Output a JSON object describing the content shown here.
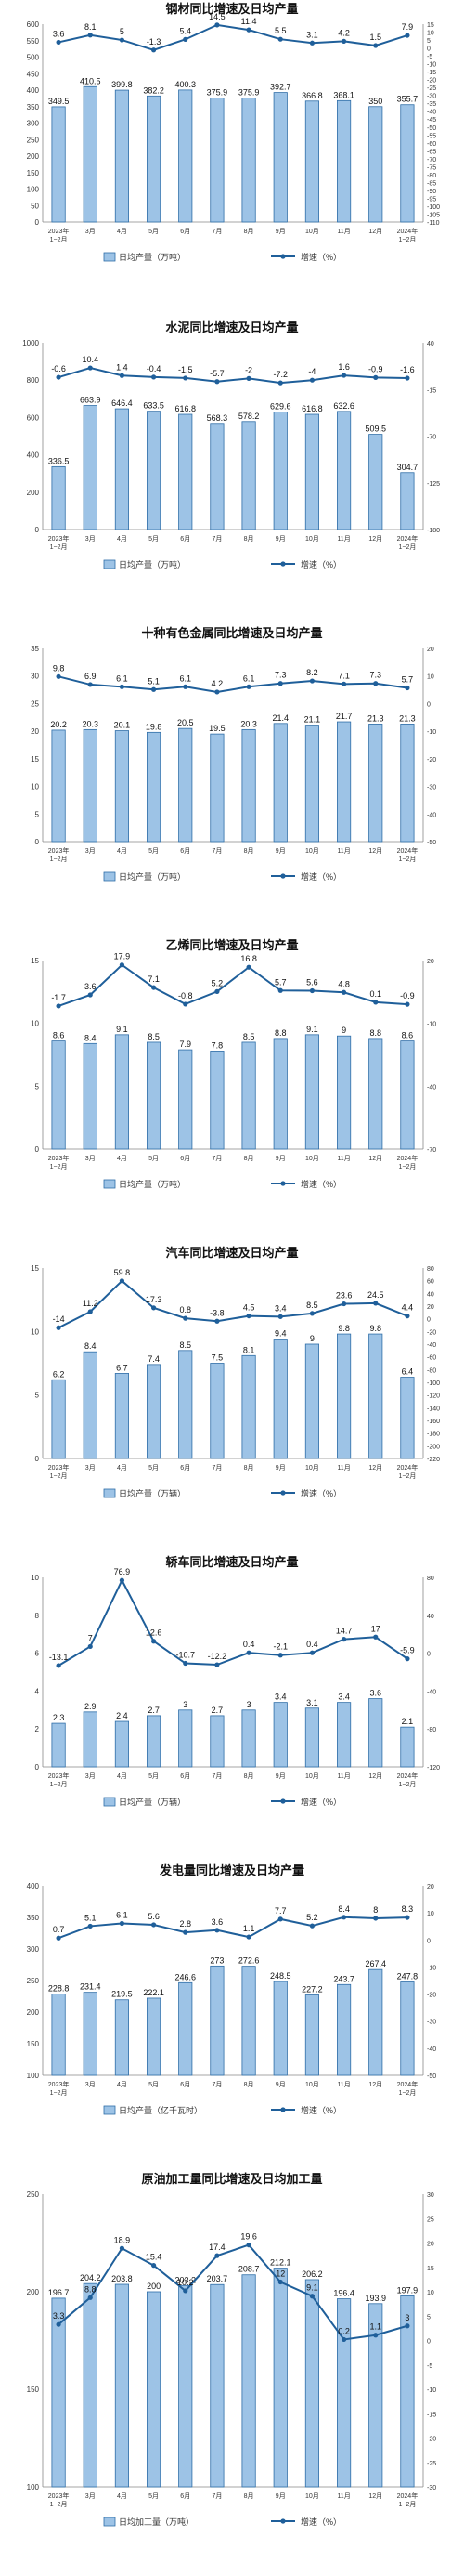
{
  "chart_data": [
    {
      "type": "bar+line",
      "title": "钢材同比增速及日均产量",
      "categories": [
        "2023年\n1−2月",
        "3月",
        "4月",
        "5月",
        "6月",
        "7月",
        "8月",
        "9月",
        "10月",
        "11月",
        "12月",
        "2024年\n1−2月"
      ],
      "series": [
        {
          "name": "日均产量（万吨）",
          "kind": "bar",
          "axis": "left",
          "values": [
            349.5,
            410.5,
            399.8,
            382.2,
            400.3,
            375.9,
            375.9,
            392.7,
            366.8,
            368.1,
            350.0,
            355.7
          ]
        },
        {
          "name": "增速（%）",
          "kind": "line",
          "axis": "right",
          "values": [
            3.6,
            8.1,
            5.0,
            -1.3,
            5.4,
            14.5,
            11.4,
            5.5,
            3.1,
            4.2,
            1.5,
            7.9
          ]
        }
      ],
      "yleft": {
        "min": 0,
        "max": 600,
        "ticks": [
          0,
          50,
          100,
          150,
          200,
          250,
          300,
          350,
          400,
          450,
          500,
          550,
          600
        ]
      },
      "yright": {
        "min": -110,
        "max": 15,
        "ticks": [
          15,
          10,
          5,
          0,
          -5,
          -10,
          -15,
          -20,
          -25,
          -30,
          -35,
          -40,
          -45,
          -50,
          -55,
          -60,
          -65,
          -70,
          -75,
          -80,
          -85,
          -90,
          -95,
          -100,
          -105,
          -110
        ]
      },
      "legend_position": "bottom"
    },
    {
      "type": "bar+line",
      "title": "水泥同比增速及日均产量",
      "categories": [
        "2023年\n1−2月",
        "3月",
        "4月",
        "5月",
        "6月",
        "7月",
        "8月",
        "9月",
        "10月",
        "11月",
        "12月",
        "2024年\n1−2月"
      ],
      "series": [
        {
          "name": "日均产量（万吨）",
          "kind": "bar",
          "axis": "left",
          "values": [
            336.5,
            663.9,
            646.4,
            633.5,
            616.8,
            568.3,
            578.2,
            629.6,
            616.8,
            632.6,
            509.5,
            304.7
          ]
        },
        {
          "name": "增速（%）",
          "kind": "line",
          "axis": "right",
          "values": [
            -0.6,
            10.4,
            1.4,
            -0.4,
            -1.5,
            -5.7,
            -2.0,
            -7.2,
            -4.0,
            1.6,
            -0.9,
            -1.6
          ]
        }
      ],
      "yleft": {
        "min": 0,
        "max": 1000,
        "ticks": [
          0,
          200,
          400,
          600,
          800,
          1000
        ]
      },
      "yright": {
        "min": -180,
        "max": 40,
        "ticks": [
          40,
          -15,
          -70,
          -125,
          -180
        ]
      },
      "legend_position": "bottom"
    },
    {
      "type": "bar+line",
      "title": "十种有色金属同比增速及日均产量",
      "categories": [
        "2023年\n1−2月",
        "3月",
        "4月",
        "5月",
        "6月",
        "7月",
        "8月",
        "9月",
        "10月",
        "11月",
        "12月",
        "2024年\n1−2月"
      ],
      "series": [
        {
          "name": "日均产量（万吨）",
          "kind": "bar",
          "axis": "left",
          "values": [
            20.2,
            20.3,
            20.1,
            19.8,
            20.5,
            19.5,
            20.3,
            21.4,
            21.1,
            21.7,
            21.3,
            21.3
          ]
        },
        {
          "name": "增速（%）",
          "kind": "line",
          "axis": "right",
          "values": [
            9.8,
            6.9,
            6.1,
            5.1,
            6.1,
            4.2,
            6.1,
            7.3,
            8.2,
            7.1,
            7.3,
            5.7
          ]
        }
      ],
      "yleft": {
        "min": 0,
        "max": 35,
        "ticks": [
          0,
          5,
          10,
          15,
          20,
          25,
          30,
          35
        ]
      },
      "yright": {
        "min": -50,
        "max": 20,
        "ticks": [
          20,
          10,
          0,
          -10,
          -20,
          -30,
          -40,
          -50
        ]
      },
      "legend_position": "bottom"
    },
    {
      "type": "bar+line",
      "title": "乙烯同比增速及日均产量",
      "categories": [
        "2023年\n1−2月",
        "3月",
        "4月",
        "5月",
        "6月",
        "7月",
        "8月",
        "9月",
        "10月",
        "11月",
        "12月",
        "2024年\n1−2月"
      ],
      "series": [
        {
          "name": "日均产量（万吨）",
          "kind": "bar",
          "axis": "left",
          "values": [
            8.6,
            8.4,
            9.1,
            8.5,
            7.9,
            7.8,
            8.5,
            8.8,
            9.1,
            9.0,
            8.8,
            8.6
          ]
        },
        {
          "name": "增速（%）",
          "kind": "line",
          "axis": "right",
          "values": [
            -1.7,
            3.6,
            17.9,
            7.1,
            -0.8,
            5.2,
            16.8,
            5.7,
            5.6,
            4.8,
            0.1,
            -0.9
          ]
        }
      ],
      "yleft": {
        "min": 0,
        "max": 15,
        "ticks": [
          0,
          5,
          10,
          15
        ]
      },
      "yright": {
        "min": -70,
        "max": 20,
        "ticks": [
          20,
          -10,
          -40,
          -70
        ]
      },
      "legend_position": "bottom"
    },
    {
      "type": "bar+line",
      "title": "汽车同比增速及日均产量",
      "categories": [
        "2023年\n1−2月",
        "3月",
        "4月",
        "5月",
        "6月",
        "7月",
        "8月",
        "9月",
        "10月",
        "11月",
        "12月",
        "2024年\n1−2月"
      ],
      "series": [
        {
          "name": "日均产量（万辆）",
          "kind": "bar",
          "axis": "left",
          "values": [
            6.2,
            8.4,
            6.7,
            7.4,
            8.5,
            7.5,
            8.1,
            9.4,
            9.0,
            9.8,
            9.8,
            6.4
          ]
        },
        {
          "name": "增速（%）",
          "kind": "line",
          "axis": "right",
          "values": [
            -14.0,
            11.2,
            59.8,
            17.3,
            0.8,
            -3.8,
            4.5,
            3.4,
            8.5,
            23.6,
            24.5,
            4.4
          ]
        }
      ],
      "yleft": {
        "min": 0,
        "max": 15,
        "ticks": [
          0,
          5,
          10,
          15
        ]
      },
      "yright": {
        "min": -220,
        "max": 80,
        "ticks": [
          80,
          60,
          40,
          20,
          0,
          -20,
          -40,
          -60,
          -80,
          -100,
          -120,
          -140,
          -160,
          -180,
          -200,
          -220
        ]
      },
      "legend_position": "bottom"
    },
    {
      "type": "bar+line",
      "title": "轿车同比增速及日均产量",
      "categories": [
        "2023年\n1−2月",
        "3月",
        "4月",
        "5月",
        "6月",
        "7月",
        "8月",
        "9月",
        "10月",
        "11月",
        "12月",
        "2024年\n1−2月"
      ],
      "series": [
        {
          "name": "日均产量（万辆）",
          "kind": "bar",
          "axis": "left",
          "values": [
            2.3,
            2.9,
            2.4,
            2.7,
            3.0,
            2.7,
            3.0,
            3.4,
            3.1,
            3.4,
            3.6,
            2.1
          ]
        },
        {
          "name": "增速（%）",
          "kind": "line",
          "axis": "right",
          "values": [
            -13.1,
            7.0,
            76.9,
            12.6,
            -10.7,
            -12.2,
            0.4,
            -2.1,
            0.4,
            14.7,
            17.0,
            -5.9
          ]
        }
      ],
      "yleft": {
        "min": 0,
        "max": 10,
        "ticks": [
          0,
          2,
          4,
          6,
          8,
          10
        ]
      },
      "yright": {
        "min": -120,
        "max": 80,
        "ticks": [
          80,
          40,
          0,
          -40,
          -80,
          -120
        ]
      },
      "legend_position": "bottom"
    },
    {
      "type": "bar+line",
      "title": "发电量同比增速及日均产量",
      "categories": [
        "2023年\n1−2月",
        "3月",
        "4月",
        "5月",
        "6月",
        "7月",
        "8月",
        "9月",
        "10月",
        "11月",
        "12月",
        "2024年\n1−2月"
      ],
      "series": [
        {
          "name": "日均产量（亿千瓦时）",
          "kind": "bar",
          "axis": "left",
          "values": [
            228.8,
            231.4,
            219.5,
            222.1,
            246.6,
            273.0,
            272.6,
            248.5,
            227.2,
            243.7,
            267.4,
            247.8
          ]
        },
        {
          "name": "增速（%）",
          "kind": "line",
          "axis": "right",
          "values": [
            0.7,
            5.1,
            6.1,
            5.6,
            2.8,
            3.6,
            1.1,
            7.7,
            5.2,
            8.4,
            8.0,
            8.3
          ]
        }
      ],
      "yleft": {
        "min": 100,
        "max": 400,
        "ticks": [
          100,
          150,
          200,
          250,
          300,
          350,
          400
        ]
      },
      "yright": {
        "min": -50,
        "max": 20,
        "ticks": [
          20,
          10,
          0,
          -10,
          -20,
          -30,
          -40,
          -50
        ]
      },
      "legend_position": "bottom"
    },
    {
      "type": "bar+line",
      "title": "原油加工量同比增速及日均加工量",
      "categories": [
        "2023年\n1−2月",
        "3月",
        "4月",
        "5月",
        "6月",
        "7月",
        "8月",
        "9月",
        "10月",
        "11月",
        "12月",
        "2024年\n1−2月"
      ],
      "series": [
        {
          "name": "日均加工量（万吨）",
          "kind": "bar",
          "axis": "left",
          "values": [
            196.7,
            204.2,
            203.8,
            200.0,
            203.2,
            203.7,
            208.7,
            212.1,
            206.2,
            196.4,
            193.9,
            197.9
          ]
        },
        {
          "name": "增速（%）",
          "kind": "line",
          "axis": "right",
          "values": [
            3.3,
            8.8,
            18.9,
            15.4,
            10.2,
            17.4,
            19.6,
            12.0,
            9.1,
            0.2,
            1.1,
            3.0
          ]
        }
      ],
      "yleft": {
        "min": 100,
        "max": 250,
        "ticks": [
          100,
          150,
          200,
          250
        ]
      },
      "yright": {
        "min": -30,
        "max": 30,
        "ticks": [
          30,
          25,
          20,
          15,
          10,
          5,
          0,
          -5,
          -10,
          -15,
          -20,
          -25,
          -30
        ]
      },
      "legend_position": "bottom"
    }
  ],
  "colors": {
    "bar_fill": "#9dc3e6",
    "bar_stroke": "#2f6ea8",
    "line": "#1f5f9a",
    "axis_text": "#333333"
  }
}
